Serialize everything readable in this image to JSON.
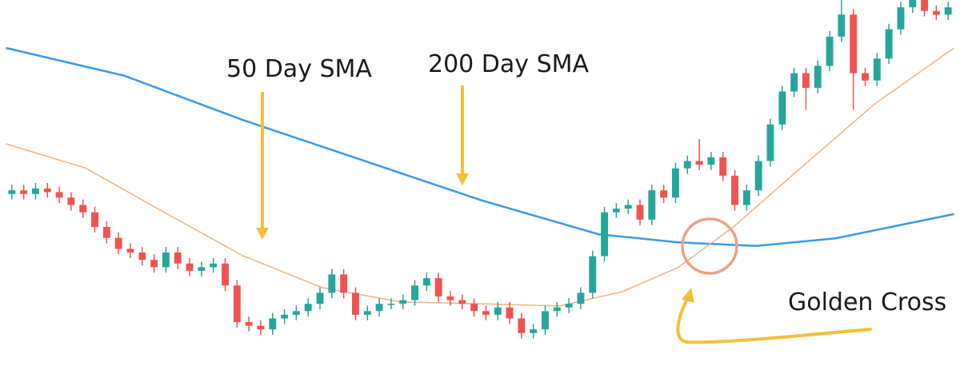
{
  "chart_data": {
    "type": "candlestick",
    "xlim": [
      -0.5,
      79.5
    ],
    "ylim": [
      0,
      100
    ],
    "up_color": "#26a69a",
    "down_color": "#ef5350",
    "candles": {
      "open": [
        47,
        48,
        47,
        48.5,
        47.5,
        46,
        44,
        42,
        38,
        35,
        32,
        31,
        29,
        27,
        31,
        28,
        26,
        27,
        28,
        22,
        12,
        11,
        10,
        13,
        14,
        15,
        17,
        20,
        25,
        20,
        14,
        15,
        17,
        17,
        18,
        22,
        24,
        19,
        18,
        17,
        15,
        14,
        16,
        13,
        9,
        10,
        15,
        16,
        17,
        20,
        30,
        42,
        43,
        44,
        40,
        48,
        46,
        54,
        56,
        55,
        57,
        52,
        44,
        48,
        56,
        66,
        75,
        80,
        76,
        82,
        90,
        96,
        80,
        78,
        84,
        92,
        98,
        100,
        97,
        96
      ],
      "high": [
        49.5,
        49.5,
        50,
        50,
        49,
        47.5,
        45.5,
        43.5,
        39.5,
        36.5,
        33.5,
        32.5,
        30.5,
        32.5,
        32.5,
        29.5,
        28.5,
        29.5,
        29.5,
        23.5,
        13.5,
        12.5,
        14.5,
        15.5,
        16.5,
        18.5,
        21.5,
        26.5,
        26.5,
        21.5,
        16.5,
        18.5,
        18.5,
        19.5,
        23.5,
        25.5,
        25.5,
        20.5,
        19.5,
        18.5,
        16.5,
        17.5,
        17.5,
        14.5,
        11.5,
        16.5,
        17.5,
        18.5,
        21.5,
        31.5,
        43.5,
        44.5,
        45.5,
        45.5,
        49.5,
        49.5,
        55.5,
        57.5,
        62,
        58.5,
        58.5,
        53.5,
        49.5,
        57.5,
        67.5,
        76.5,
        81.5,
        81.5,
        83.5,
        91.5,
        100,
        97.5,
        81.5,
        85.5,
        93.5,
        99.5,
        101.5,
        101.5,
        98.5,
        99.5
      ],
      "low": [
        45.5,
        45.5,
        45.5,
        46,
        44.5,
        42.5,
        40.5,
        36.5,
        33.5,
        30.5,
        29.5,
        27.5,
        25.5,
        25.5,
        26.5,
        24.5,
        24.5,
        25.5,
        20.5,
        10.5,
        9.5,
        8.5,
        8.5,
        11.5,
        12.5,
        13.5,
        15.5,
        18.5,
        18.5,
        12.5,
        12.5,
        13.5,
        15.5,
        15.5,
        16.5,
        20.5,
        17.5,
        16.5,
        15.5,
        13.5,
        12.5,
        12.5,
        11.5,
        7.5,
        7.5,
        8.5,
        13.5,
        14.5,
        15.5,
        18.5,
        28.5,
        40.5,
        41.5,
        38.5,
        38.5,
        44.5,
        44.5,
        52.5,
        53.5,
        53.5,
        50.5,
        42.5,
        42.5,
        46.5,
        54.5,
        64.5,
        73.5,
        70,
        74.5,
        80.5,
        88.5,
        70,
        76.5,
        76.5,
        82.5,
        90.5,
        96.5,
        95.5,
        94.5,
        94.5
      ],
      "close": [
        48,
        47,
        48.5,
        47.5,
        46,
        44,
        42,
        38,
        35,
        32,
        31,
        29,
        27,
        31,
        28,
        26,
        27,
        28,
        22,
        12,
        11,
        10,
        13,
        14,
        15,
        17,
        20,
        25,
        20,
        14,
        15,
        17,
        17,
        18,
        22,
        24,
        19,
        18,
        17,
        15,
        14,
        16,
        13,
        9,
        10,
        15,
        16,
        17,
        20,
        30,
        42,
        43,
        44,
        40,
        48,
        46,
        54,
        56,
        55,
        57,
        52,
        44,
        48,
        56,
        66,
        75,
        80,
        76,
        82,
        90,
        96,
        80,
        78,
        84,
        92,
        98,
        100,
        97,
        96,
        98
      ]
    },
    "lines": [
      {
        "color": "#3a9ae6",
        "width": 2.5,
        "x": [
          -0.5,
          9.5,
          19.5,
          29.5,
          39.5,
          49.5,
          56.2,
          62.8,
          69.5,
          79.5
        ],
        "values": [
          86.9,
          79.3,
          67.2,
          56.3,
          45.4,
          36,
          33.8,
          32.8,
          34.9,
          41.5
        ]
      },
      {
        "color": "#f5b07e",
        "width": 1.5,
        "x": [
          -0.5,
          6.2,
          12.8,
          19.5,
          26.2,
          32.8,
          39.5,
          46.2,
          51.5,
          56.2,
          60.8,
          66.2,
          72.8,
          79.5
        ],
        "values": [
          60.7,
          54.1,
          42.1,
          30.1,
          21.4,
          17.5,
          17,
          16.4,
          20.3,
          26.9,
          37.8,
          53.1,
          71.6,
          86.9
        ]
      }
    ],
    "annotations": [
      "50 Day SMA",
      "200 Day SMA",
      "Golden Cross"
    ]
  }
}
